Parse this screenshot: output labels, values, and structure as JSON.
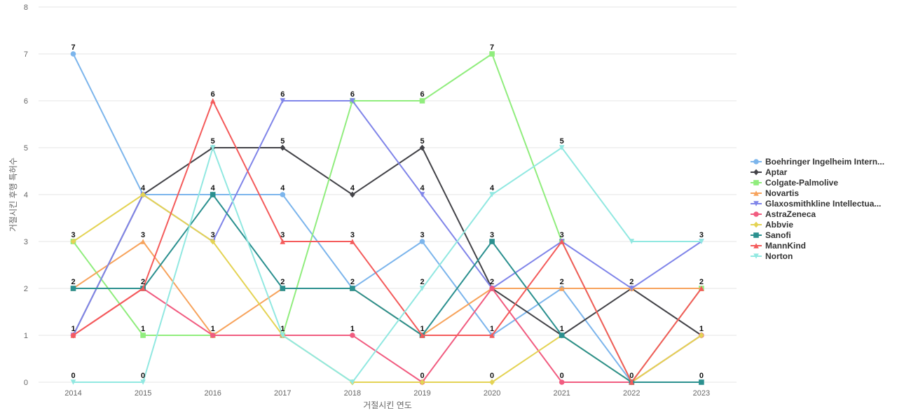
{
  "chart_data": {
    "type": "line",
    "title": "",
    "xlabel": "거절시킨 연도",
    "ylabel": "거절시킨 후행 특허수",
    "x": [
      "2014",
      "2015",
      "2016",
      "2017",
      "2018",
      "2019",
      "2020",
      "2021",
      "2022",
      "2023"
    ],
    "ylim": [
      0,
      8
    ],
    "yticks": [
      0,
      1,
      2,
      3,
      4,
      5,
      6,
      7,
      8
    ],
    "grid": true,
    "legend_position": "right",
    "series": [
      {
        "name": "Boehringer Ingelheim Intern...",
        "color": "#7cb5ec",
        "marker": "circle",
        "values": [
          7,
          4,
          4,
          4,
          2,
          3,
          1,
          2,
          0,
          1
        ]
      },
      {
        "name": "Aptar",
        "color": "#434348",
        "marker": "diamond",
        "values": [
          1,
          4,
          5,
          5,
          4,
          5,
          2,
          1,
          2,
          1
        ]
      },
      {
        "name": "Colgate-Palmolive",
        "color": "#90ed7d",
        "marker": "square",
        "values": [
          3,
          1,
          1,
          1,
          6,
          6,
          7,
          3,
          0,
          2
        ]
      },
      {
        "name": "Novartis",
        "color": "#f7a35c",
        "marker": "triangle",
        "values": [
          2,
          3,
          1,
          2,
          2,
          1,
          2,
          2,
          2,
          2
        ]
      },
      {
        "name": "Glaxosmithkline Intellectua...",
        "color": "#8085e9",
        "marker": "triangle-down",
        "values": [
          1,
          4,
          3,
          6,
          6,
          4,
          2,
          3,
          2,
          3
        ]
      },
      {
        "name": "AstraZeneca",
        "color": "#f15c80",
        "marker": "circle",
        "values": [
          1,
          2,
          1,
          1,
          1,
          0,
          2,
          0,
          0,
          1
        ]
      },
      {
        "name": "Abbvie",
        "color": "#e4d354",
        "marker": "diamond",
        "values": [
          3,
          4,
          3,
          1,
          0,
          0,
          0,
          1,
          0,
          1
        ]
      },
      {
        "name": "Sanofi",
        "color": "#2b908f",
        "marker": "square",
        "values": [
          2,
          2,
          4,
          2,
          2,
          1,
          3,
          1,
          0,
          0
        ]
      },
      {
        "name": "MannKind",
        "color": "#f45b5b",
        "marker": "triangle",
        "values": [
          1,
          2,
          6,
          3,
          3,
          1,
          1,
          3,
          0,
          2
        ]
      },
      {
        "name": "Norton",
        "color": "#91e8e1",
        "marker": "triangle-down",
        "values": [
          0,
          0,
          5,
          1,
          0,
          2,
          4,
          5,
          3,
          3
        ]
      }
    ],
    "data_labels": [
      {
        "x": "2014",
        "value": 7
      },
      {
        "x": "2014",
        "value": 3
      },
      {
        "x": "2014",
        "value": 2
      },
      {
        "x": "2014",
        "value": 1
      },
      {
        "x": "2014",
        "value": 0
      },
      {
        "x": "2015",
        "value": 4
      },
      {
        "x": "2015",
        "value": 3
      },
      {
        "x": "2015",
        "value": 2
      },
      {
        "x": "2015",
        "value": 1
      },
      {
        "x": "2015",
        "value": 0
      },
      {
        "x": "2016",
        "value": 6
      },
      {
        "x": "2016",
        "value": 5
      },
      {
        "x": "2016",
        "value": 4
      },
      {
        "x": "2016",
        "value": 3
      },
      {
        "x": "2016",
        "value": 1
      },
      {
        "x": "2017",
        "value": 6
      },
      {
        "x": "2017",
        "value": 5
      },
      {
        "x": "2017",
        "value": 4
      },
      {
        "x": "2017",
        "value": 3
      },
      {
        "x": "2017",
        "value": 2
      },
      {
        "x": "2017",
        "value": 1
      },
      {
        "x": "2018",
        "value": 6
      },
      {
        "x": "2018",
        "value": 4
      },
      {
        "x": "2018",
        "value": 3
      },
      {
        "x": "2018",
        "value": 2
      },
      {
        "x": "2018",
        "value": 1
      },
      {
        "x": "2019",
        "value": 6
      },
      {
        "x": "2019",
        "value": 5
      },
      {
        "x": "2019",
        "value": 4
      },
      {
        "x": "2019",
        "value": 3
      },
      {
        "x": "2019",
        "value": 2
      },
      {
        "x": "2019",
        "value": 1
      },
      {
        "x": "2019",
        "value": 0
      },
      {
        "x": "2020",
        "value": 7
      },
      {
        "x": "2020",
        "value": 4
      },
      {
        "x": "2020",
        "value": 3
      },
      {
        "x": "2020",
        "value": 2
      },
      {
        "x": "2020",
        "value": 1
      },
      {
        "x": "2020",
        "value": 0
      },
      {
        "x": "2021",
        "value": 5
      },
      {
        "x": "2021",
        "value": 3
      },
      {
        "x": "2021",
        "value": 2
      },
      {
        "x": "2021",
        "value": 1
      },
      {
        "x": "2021",
        "value": 0
      },
      {
        "x": "2022",
        "value": 2
      },
      {
        "x": "2022",
        "value": 0
      },
      {
        "x": "2023",
        "value": 3
      },
      {
        "x": "2023",
        "value": 2
      },
      {
        "x": "2023",
        "value": 1
      },
      {
        "x": "2023",
        "value": 0
      }
    ]
  }
}
